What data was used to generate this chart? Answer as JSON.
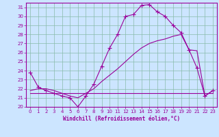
{
  "background_color": "#cce5ff",
  "line_color": "#990099",
  "grid_color": "#aaddcc",
  "xlabel": "Windchill (Refroidissement éolien,°C)",
  "tick_color": "#990099",
  "xlim": [
    -0.5,
    23.5
  ],
  "ylim": [
    20,
    31.5
  ],
  "yticks": [
    20,
    21,
    22,
    23,
    24,
    25,
    26,
    27,
    28,
    29,
    30,
    31
  ],
  "xticks": [
    0,
    1,
    2,
    3,
    4,
    5,
    6,
    7,
    8,
    9,
    10,
    11,
    12,
    13,
    14,
    15,
    16,
    17,
    18,
    19,
    20,
    21,
    22,
    23
  ],
  "line1_x": [
    0,
    1,
    2,
    3,
    4,
    5,
    6,
    7,
    8,
    9,
    10,
    11,
    12,
    13,
    14,
    15,
    16,
    17,
    18,
    19,
    20,
    21,
    22,
    23
  ],
  "line1_y": [
    23.8,
    22.2,
    21.8,
    21.5,
    21.2,
    21.0,
    20.0,
    21.2,
    22.5,
    24.5,
    26.5,
    28.0,
    30.0,
    30.2,
    31.2,
    31.3,
    30.5,
    30.0,
    29.0,
    28.2,
    26.3,
    24.3,
    21.2,
    21.8
  ],
  "line2_x": [
    0,
    1,
    2,
    3,
    4,
    5,
    6,
    7,
    8,
    9,
    10,
    11,
    12,
    13,
    14,
    15,
    16,
    17,
    18,
    19,
    20,
    21,
    22,
    23
  ],
  "line2_y": [
    21.8,
    22.0,
    22.0,
    21.8,
    21.5,
    21.2,
    21.0,
    21.5,
    22.0,
    22.8,
    23.5,
    24.2,
    25.0,
    25.8,
    26.5,
    27.0,
    27.3,
    27.5,
    27.8,
    28.0,
    26.3,
    26.2,
    21.2,
    21.8
  ],
  "line3_x": [
    0,
    1,
    2,
    3,
    4,
    5,
    6,
    7,
    8,
    9,
    10,
    11,
    12,
    13,
    14,
    15,
    16,
    17,
    18,
    19,
    20,
    21,
    22,
    23
  ],
  "line3_y": [
    21.5,
    21.5,
    21.5,
    21.5,
    21.5,
    21.5,
    21.5,
    21.5,
    21.5,
    21.5,
    21.5,
    21.5,
    21.5,
    21.5,
    21.5,
    21.5,
    21.5,
    21.5,
    21.5,
    21.5,
    21.5,
    21.5,
    21.5,
    21.5
  ]
}
